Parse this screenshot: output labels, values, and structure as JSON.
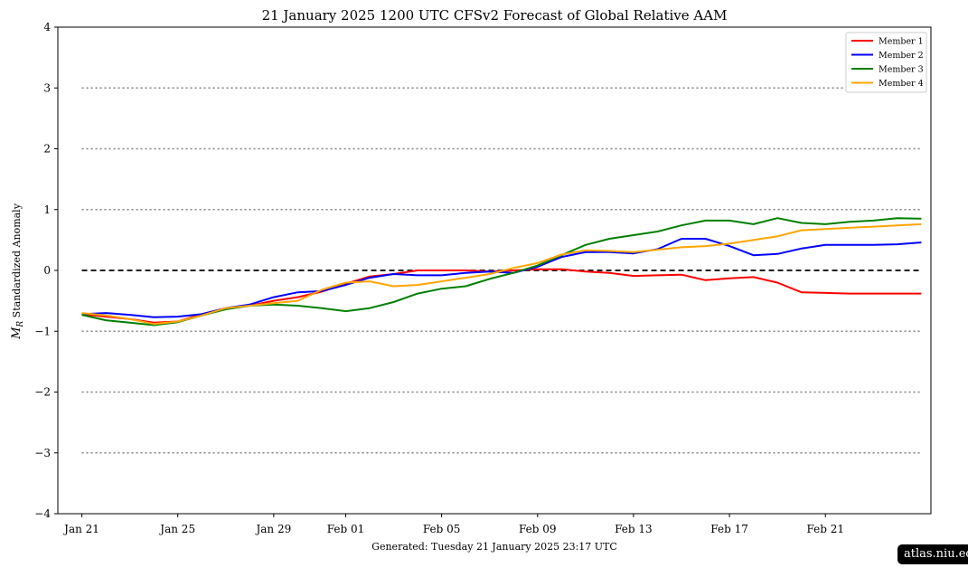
{
  "chart_data": {
    "type": "line",
    "title": "21  January  2025 1200 UTC   CFSv2 Forecast of Global Relative AAM",
    "ylabel": "M_R Standardized Anomaly",
    "ylabel_symbol": "M",
    "ylabel_sub": "R",
    "ylabel_text": " Standardized Anomaly",
    "xlabel": "",
    "ylim": [
      -4,
      4
    ],
    "yticks": [
      -4,
      -3,
      -2,
      -1,
      0,
      1,
      2,
      3,
      4
    ],
    "ytick_labels": [
      "−4",
      "−3",
      "−2",
      "−1",
      "0",
      "1",
      "2",
      "3",
      "4"
    ],
    "xlim": [
      -1.0,
      35.4
    ],
    "xticks": [
      0,
      4,
      8,
      11,
      15,
      19,
      23,
      27,
      31
    ],
    "xtick_labels": [
      "Jan 21",
      "Jan 25",
      "Jan 29",
      "Feb 01",
      "Feb 05",
      "Feb 09",
      "Feb 13",
      "Feb 17",
      "Feb 21"
    ],
    "hlines_dotted": [
      -3,
      -2,
      -1,
      1,
      2,
      3
    ],
    "hline_dashed": 0,
    "legend_position": "upper right",
    "x": [
      0,
      1,
      2,
      3,
      4,
      5,
      6,
      7,
      8,
      9,
      10,
      11,
      12,
      13,
      14,
      15,
      16,
      17,
      18,
      19,
      20,
      21,
      22,
      23,
      24,
      25,
      26,
      27,
      28,
      29,
      30,
      31,
      32,
      33,
      34,
      35
    ],
    "series": [
      {
        "name": "Member 1",
        "color": "#ff0000",
        "values": [
          -0.72,
          -0.76,
          -0.8,
          -0.86,
          -0.84,
          -0.72,
          -0.62,
          -0.58,
          -0.5,
          -0.44,
          -0.35,
          -0.22,
          -0.1,
          -0.06,
          0.0,
          0.0,
          0.0,
          -0.02,
          0.0,
          0.02,
          0.02,
          -0.02,
          -0.04,
          -0.09,
          -0.08,
          -0.07,
          -0.16,
          -0.13,
          -0.11,
          -0.2,
          -0.36,
          -0.37,
          -0.38,
          -0.38,
          -0.38,
          -0.38
        ]
      },
      {
        "name": "Member 2",
        "color": "#0000ff",
        "values": [
          -0.72,
          -0.7,
          -0.73,
          -0.77,
          -0.76,
          -0.72,
          -0.62,
          -0.56,
          -0.44,
          -0.36,
          -0.34,
          -0.24,
          -0.12,
          -0.06,
          -0.08,
          -0.08,
          -0.04,
          -0.02,
          -0.04,
          0.06,
          0.22,
          0.3,
          0.3,
          0.28,
          0.35,
          0.52,
          0.52,
          0.4,
          0.25,
          0.27,
          0.36,
          0.42,
          0.42,
          0.42,
          0.43,
          0.46
        ]
      },
      {
        "name": "Member 3",
        "color": "#008000",
        "values": [
          -0.73,
          -0.82,
          -0.86,
          -0.9,
          -0.85,
          -0.74,
          -0.64,
          -0.58,
          -0.56,
          -0.58,
          -0.62,
          -0.67,
          -0.62,
          -0.52,
          -0.38,
          -0.3,
          -0.26,
          -0.14,
          -0.04,
          0.08,
          0.25,
          0.42,
          0.52,
          0.58,
          0.64,
          0.74,
          0.82,
          0.82,
          0.76,
          0.86,
          0.78,
          0.76,
          0.8,
          0.82,
          0.86,
          0.85
        ]
      },
      {
        "name": "Member 4",
        "color": "#ffa500",
        "values": [
          -0.7,
          -0.74,
          -0.8,
          -0.88,
          -0.84,
          -0.74,
          -0.62,
          -0.58,
          -0.54,
          -0.5,
          -0.32,
          -0.2,
          -0.18,
          -0.26,
          -0.24,
          -0.18,
          -0.12,
          -0.06,
          0.04,
          0.12,
          0.26,
          0.33,
          0.32,
          0.3,
          0.34,
          0.38,
          0.4,
          0.44,
          0.5,
          0.56,
          0.66,
          0.68,
          0.7,
          0.72,
          0.74,
          0.76
        ]
      }
    ]
  },
  "footer": {
    "generated": "Generated: Tuesday  21  January  2025  23:17 UTC",
    "badge": "atlas.niu.edu"
  }
}
